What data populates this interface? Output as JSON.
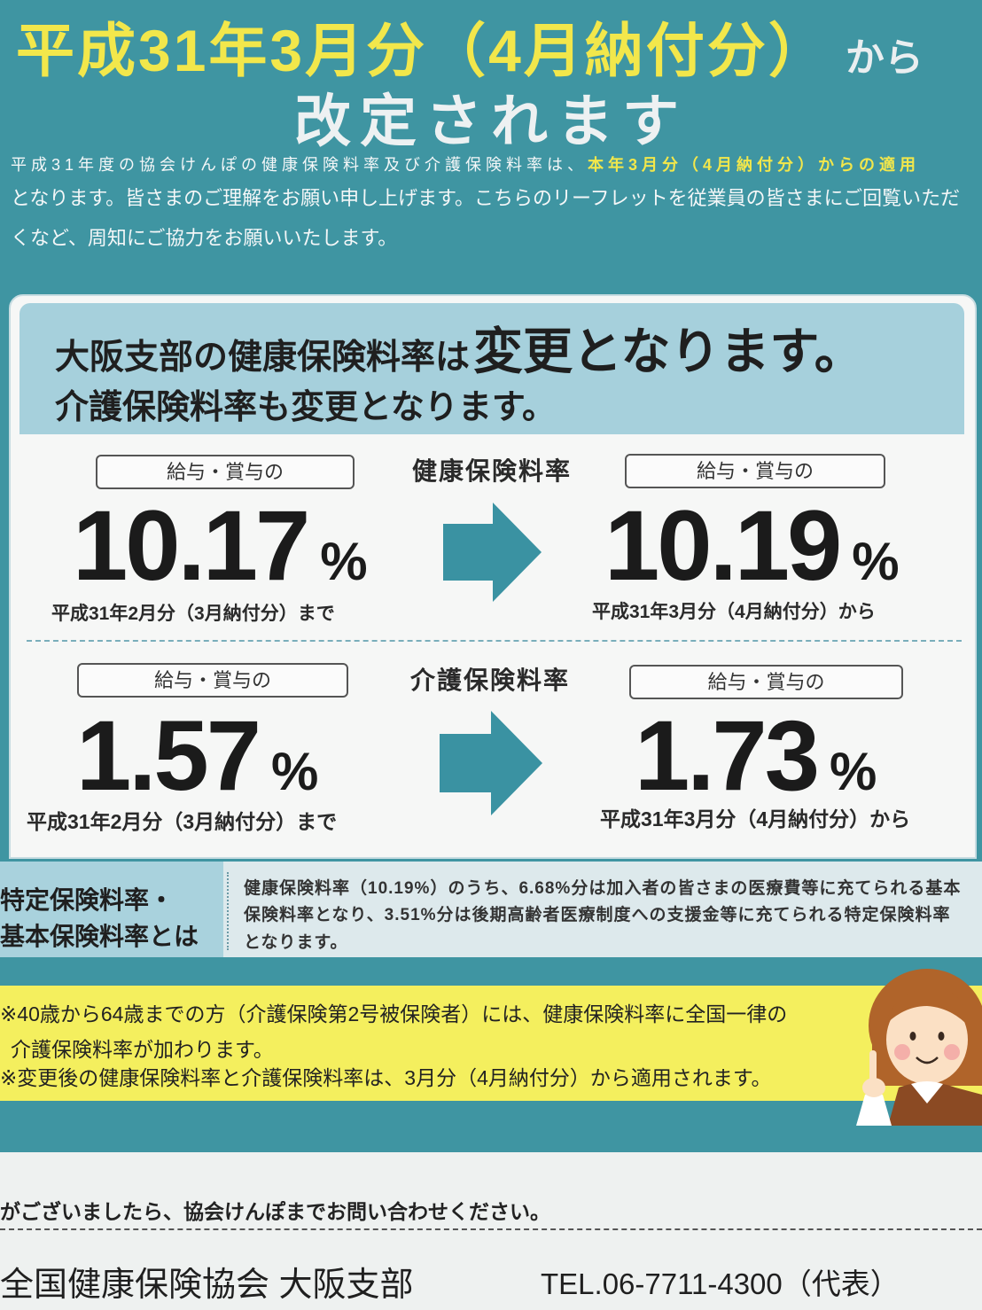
{
  "colors": {
    "background": "#3f95a2",
    "title_yellow": "#f2e74b",
    "band_blue": "#a6d0dc",
    "arrow": "#3a92a2",
    "note_yellow": "#f4ef5e"
  },
  "header": {
    "title_main": "平成31年3月分（4月納付分）",
    "title_suffix": "から",
    "title_line2": "改定されます"
  },
  "intro": {
    "line1_plain": "平成31年度の協会けんぽの健康保険料率及び介護保険料率は、",
    "line1_highlight": "本年3月分（4月納付分）からの適用",
    "line2": "となります。皆さまのご理解をお願い申し上げます。こちらのリーフレットを従業員の皆さまにご回覧いただ",
    "line3": "くなど、周知にご協力をお願いいたします。"
  },
  "rates_box": {
    "headline_prefix": "大阪支部の健康保険料率は",
    "headline_emphasis": "変更となります。",
    "subheadline": "介護保険料率も変更となります。",
    "health": {
      "label": "健康保険料率",
      "before": {
        "tag": "給与・賞与の",
        "value": "10.17",
        "unit": "%",
        "period": "平成31年2月分（3月納付分）まで"
      },
      "after": {
        "tag": "給与・賞与の",
        "value": "10.19",
        "unit": "%",
        "period": "平成31年3月分（4月納付分）から"
      }
    },
    "care": {
      "label": "介護保険料率",
      "before": {
        "tag": "給与・賞与の",
        "value": "1.57",
        "unit": "%",
        "period": "平成31年2月分（3月納付分）まで"
      },
      "after": {
        "tag": "給与・賞与の",
        "value": "1.73",
        "unit": "%",
        "period": "平成31年3月分（4月納付分）から"
      }
    }
  },
  "definition": {
    "term_line1": "特定保険料率・",
    "term_line2": "基本保険料率とは",
    "text_line1": "健康保険料率（10.19%）のうち、6.68%分は加入者の皆さまの医療費等に充てられる基本",
    "text_line2": "保険料率となり、3.51%分は後期高齢者医療制度への支援金等に充てられる特定保険料率",
    "text_line3": "となります。"
  },
  "notes": {
    "line1": "※40歳から64歳までの方（介護保険第2号被保険者）には、健康保険料率に全国一律の",
    "line2": "介護保険料率が加わります。",
    "line3": "※変更後の健康保険料率と介護保険料率は、3月分（4月納付分）から適用されます。"
  },
  "footer": {
    "inquiry": "がございましたら、協会けんぽまでお問い合わせください。",
    "org": "全国健康保険協会 大阪支部",
    "tel": "TEL.06-7711-4300（代表）"
  }
}
